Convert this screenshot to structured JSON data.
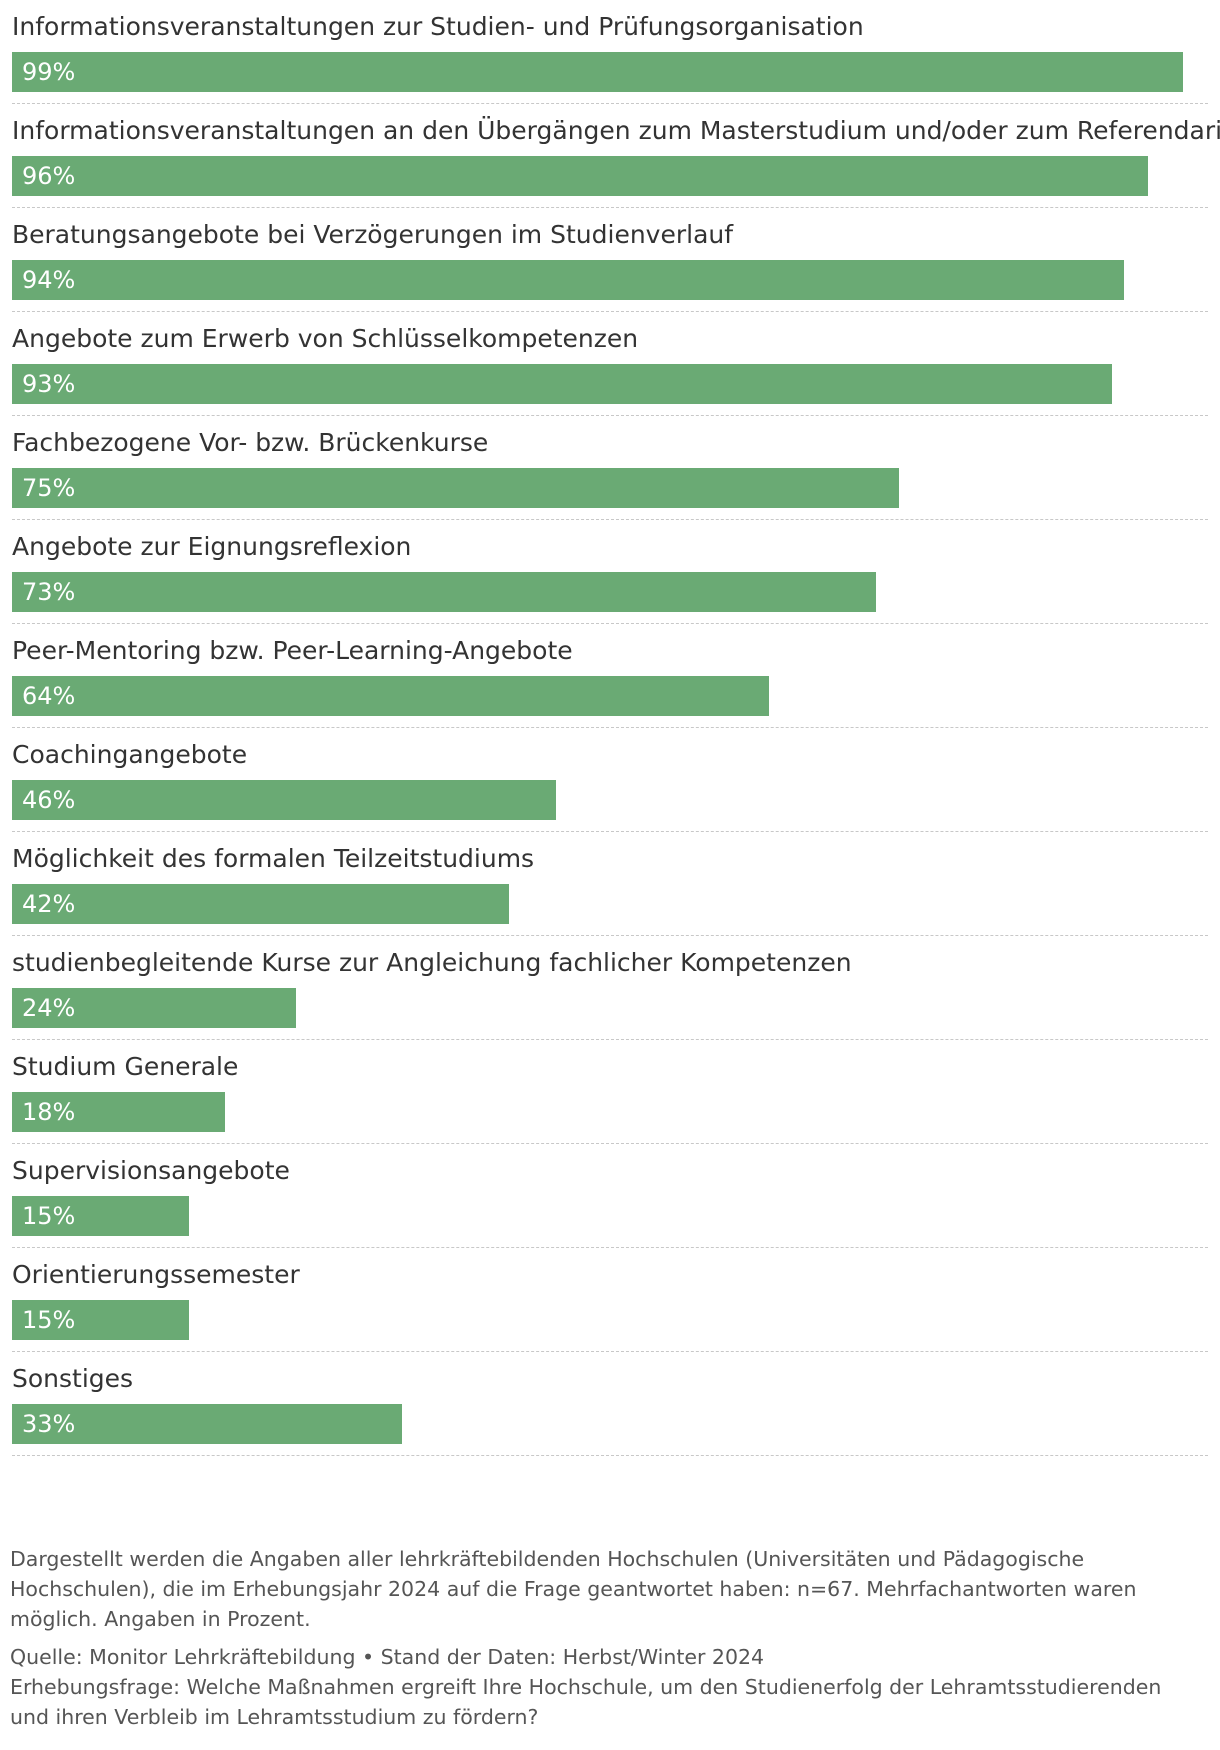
{
  "chart_data": {
    "type": "bar",
    "orientation": "horizontal",
    "categories": [
      "Informationsveranstaltungen zur Studien- und Prüfungsorganisation",
      "Informationsveranstaltungen an den Übergängen zum Masterstudium und/oder zum Referendariat",
      "Beratungsangebote bei Verzögerungen im Studienverlauf",
      "Angebote zum Erwerb von Schlüsselkompetenzen",
      "Fachbezogene Vor- bzw. Brückenkurse",
      "Angebote zur Eignungsreflexion",
      "Peer-Mentoring bzw. Peer-Learning-Angebote",
      "Coachingangebote",
      "Möglichkeit des formalen Teilzeitstudiums",
      "studienbegleitende Kurse zur Angleichung fachlicher Kompetenzen",
      "Studium Generale",
      "Supervisionsangebote",
      "Orientierungssemester",
      "Sonstiges"
    ],
    "values": [
      99,
      96,
      94,
      93,
      75,
      73,
      64,
      46,
      42,
      24,
      18,
      15,
      15,
      33
    ],
    "value_labels": [
      "99%",
      "96%",
      "94%",
      "93%",
      "75%",
      "73%",
      "64%",
      "46%",
      "42%",
      "24%",
      "18%",
      "15%",
      "15%",
      "33%"
    ],
    "xlim": [
      0,
      100
    ],
    "bar_color": "#6aaa74",
    "grid": false
  },
  "footer": {
    "note": "Dargestellt werden die Angaben aller lehrkräftebildenden Hochschulen (Universitäten und Pädagogische Hochschulen), die im Erhebungsjahr 2024 auf die Frage geantwortet haben: n=67. Mehrfachantworten waren möglich. Angaben in Prozent.",
    "source": "Quelle: Monitor Lehrkräftebildung • Stand der Daten: Herbst/Winter 2024",
    "question": "Erhebungsfrage: Welche Maßnahmen ergreift Ihre Hochschule, um den Studienerfolg der Lehramtsstudierenden und ihren Verbleib im Lehramtsstudium zu fördern?"
  }
}
